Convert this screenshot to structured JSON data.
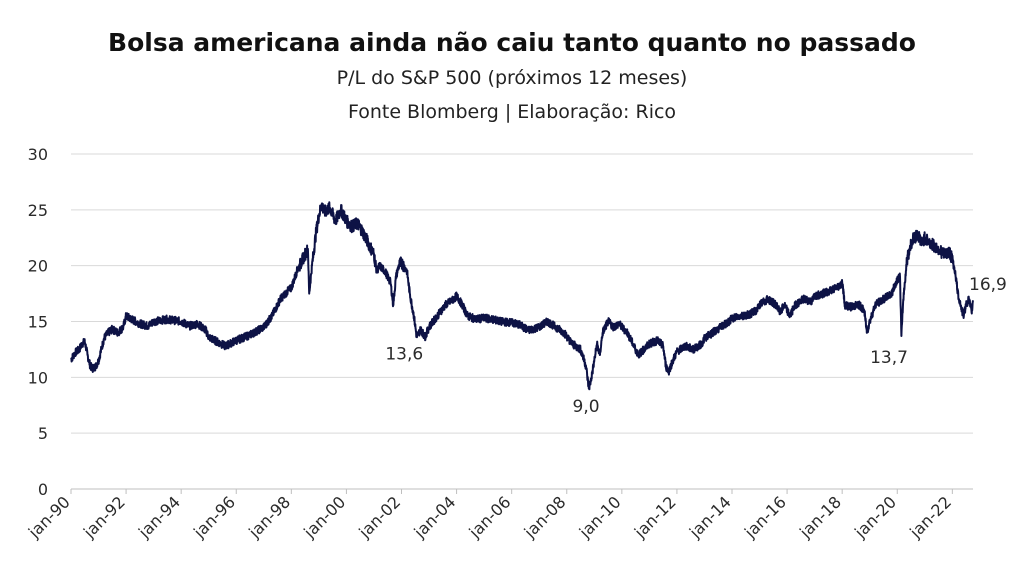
{
  "chart_data": {
    "type": "line",
    "title": "Bolsa americana ainda não caiu tanto quanto no passado",
    "subtitle": "P/L do S&P 500 (próximos 12 meses)",
    "source": "Fonte Blomberg | Elaboração: Rico",
    "xlabel": "",
    "ylabel": "",
    "xlim": [
      1990.0,
      2022.75
    ],
    "ylim": [
      0,
      30
    ],
    "yticks": [
      0,
      5,
      10,
      15,
      20,
      25,
      30
    ],
    "xticks": [
      {
        "label": "jan-90",
        "x": 1990
      },
      {
        "label": "jan-92",
        "x": 1992
      },
      {
        "label": "jan-94",
        "x": 1994
      },
      {
        "label": "jan-96",
        "x": 1996
      },
      {
        "label": "jan-98",
        "x": 1998
      },
      {
        "label": "jan-00",
        "x": 2000
      },
      {
        "label": "jan-02",
        "x": 2002
      },
      {
        "label": "jan-04",
        "x": 2004
      },
      {
        "label": "jan-06",
        "x": 2006
      },
      {
        "label": "jan-08",
        "x": 2008
      },
      {
        "label": "jan-10",
        "x": 2010
      },
      {
        "label": "jan-12",
        "x": 2012
      },
      {
        "label": "jan-14",
        "x": 2014
      },
      {
        "label": "jan-16",
        "x": 2016
      },
      {
        "label": "jan-18",
        "x": 2018
      },
      {
        "label": "jan-20",
        "x": 2020
      },
      {
        "label": "jan-22",
        "x": 2022
      }
    ],
    "grid": true,
    "series": [
      {
        "name": "P/L S&P 500",
        "color": "#0d1245",
        "points": [
          [
            1990.0,
            11.6
          ],
          [
            1990.15,
            12.2
          ],
          [
            1990.3,
            12.5
          ],
          [
            1990.4,
            13.0
          ],
          [
            1990.5,
            13.2
          ],
          [
            1990.6,
            12.0
          ],
          [
            1990.7,
            11.0
          ],
          [
            1990.8,
            10.8
          ],
          [
            1990.9,
            11.0
          ],
          [
            1991.0,
            11.5
          ],
          [
            1991.1,
            12.5
          ],
          [
            1991.2,
            13.5
          ],
          [
            1991.35,
            14.0
          ],
          [
            1991.5,
            14.3
          ],
          [
            1991.7,
            14.0
          ],
          [
            1991.9,
            14.5
          ],
          [
            1992.0,
            15.5
          ],
          [
            1992.2,
            15.2
          ],
          [
            1992.5,
            14.8
          ],
          [
            1992.8,
            14.6
          ],
          [
            1993.0,
            15.0
          ],
          [
            1993.5,
            15.2
          ],
          [
            1994.0,
            15.0
          ],
          [
            1994.3,
            14.6
          ],
          [
            1994.6,
            14.8
          ],
          [
            1994.9,
            14.2
          ],
          [
            1995.0,
            13.6
          ],
          [
            1995.3,
            13.2
          ],
          [
            1995.6,
            12.8
          ],
          [
            1996.0,
            13.3
          ],
          [
            1996.5,
            13.8
          ],
          [
            1997.0,
            14.5
          ],
          [
            1997.3,
            15.5
          ],
          [
            1997.6,
            17.0
          ],
          [
            1997.9,
            17.8
          ],
          [
            1998.0,
            18.0
          ],
          [
            1998.2,
            19.5
          ],
          [
            1998.4,
            20.5
          ],
          [
            1998.6,
            21.5
          ],
          [
            1998.65,
            17.5
          ],
          [
            1998.75,
            20.0
          ],
          [
            1998.9,
            23.0
          ],
          [
            1999.0,
            24.5
          ],
          [
            1999.1,
            25.5
          ],
          [
            1999.2,
            24.8
          ],
          [
            1999.4,
            25.2
          ],
          [
            1999.6,
            24.0
          ],
          [
            1999.8,
            25.0
          ],
          [
            2000.0,
            24.0
          ],
          [
            2000.2,
            23.5
          ],
          [
            2000.4,
            23.8
          ],
          [
            2000.6,
            23.0
          ],
          [
            2000.8,
            22.0
          ],
          [
            2001.0,
            21.0
          ],
          [
            2001.1,
            19.5
          ],
          [
            2001.2,
            20.0
          ],
          [
            2001.4,
            19.5
          ],
          [
            2001.6,
            18.5
          ],
          [
            2001.7,
            16.5
          ],
          [
            2001.8,
            19.0
          ],
          [
            2001.9,
            20.0
          ],
          [
            2002.0,
            20.3
          ],
          [
            2002.2,
            19.5
          ],
          [
            2002.3,
            17.5
          ],
          [
            2002.45,
            15.5
          ],
          [
            2002.55,
            13.6
          ],
          [
            2002.7,
            14.3
          ],
          [
            2002.85,
            13.6
          ],
          [
            2003.0,
            14.5
          ],
          [
            2003.3,
            15.5
          ],
          [
            2003.6,
            16.5
          ],
          [
            2003.9,
            17.0
          ],
          [
            2004.0,
            17.3
          ],
          [
            2004.2,
            16.5
          ],
          [
            2004.4,
            15.5
          ],
          [
            2004.7,
            15.2
          ],
          [
            2005.0,
            15.3
          ],
          [
            2005.3,
            15.2
          ],
          [
            2005.6,
            15.0
          ],
          [
            2006.0,
            14.9
          ],
          [
            2006.3,
            14.7
          ],
          [
            2006.6,
            14.2
          ],
          [
            2007.0,
            14.5
          ],
          [
            2007.3,
            15.0
          ],
          [
            2007.6,
            14.5
          ],
          [
            2007.9,
            14.0
          ],
          [
            2008.2,
            13.0
          ],
          [
            2008.5,
            12.5
          ],
          [
            2008.7,
            11.0
          ],
          [
            2008.8,
            9.0
          ],
          [
            2008.9,
            10.0
          ],
          [
            2009.0,
            11.5
          ],
          [
            2009.1,
            13.0
          ],
          [
            2009.2,
            12.0
          ],
          [
            2009.3,
            14.0
          ],
          [
            2009.5,
            15.0
          ],
          [
            2009.7,
            14.5
          ],
          [
            2009.9,
            14.8
          ],
          [
            2010.0,
            14.5
          ],
          [
            2010.2,
            14.0
          ],
          [
            2010.4,
            13.0
          ],
          [
            2010.6,
            12.0
          ],
          [
            2010.8,
            12.5
          ],
          [
            2011.0,
            13.0
          ],
          [
            2011.3,
            13.3
          ],
          [
            2011.5,
            12.8
          ],
          [
            2011.6,
            11.0
          ],
          [
            2011.7,
            10.5
          ],
          [
            2011.85,
            11.5
          ],
          [
            2012.0,
            12.3
          ],
          [
            2012.3,
            12.8
          ],
          [
            2012.6,
            12.5
          ],
          [
            2012.9,
            13.0
          ],
          [
            2013.0,
            13.5
          ],
          [
            2013.3,
            14.0
          ],
          [
            2013.6,
            14.5
          ],
          [
            2013.9,
            15.0
          ],
          [
            2014.0,
            15.3
          ],
          [
            2014.3,
            15.5
          ],
          [
            2014.6,
            15.6
          ],
          [
            2014.9,
            16.0
          ],
          [
            2015.0,
            16.5
          ],
          [
            2015.3,
            17.0
          ],
          [
            2015.6,
            16.5
          ],
          [
            2015.75,
            15.8
          ],
          [
            2015.9,
            16.5
          ],
          [
            2016.0,
            16.0
          ],
          [
            2016.1,
            15.5
          ],
          [
            2016.3,
            16.5
          ],
          [
            2016.6,
            17.0
          ],
          [
            2016.9,
            16.8
          ],
          [
            2017.0,
            17.3
          ],
          [
            2017.3,
            17.5
          ],
          [
            2017.6,
            17.8
          ],
          [
            2017.9,
            18.2
          ],
          [
            2018.0,
            18.5
          ],
          [
            2018.1,
            16.5
          ],
          [
            2018.3,
            16.3
          ],
          [
            2018.6,
            16.5
          ],
          [
            2018.8,
            16.0
          ],
          [
            2018.9,
            14.0
          ],
          [
            2019.0,
            15.0
          ],
          [
            2019.2,
            16.5
          ],
          [
            2019.5,
            17.0
          ],
          [
            2019.8,
            17.5
          ],
          [
            2020.0,
            18.8
          ],
          [
            2020.1,
            19.0
          ],
          [
            2020.15,
            13.7
          ],
          [
            2020.22,
            17.0
          ],
          [
            2020.35,
            20.5
          ],
          [
            2020.5,
            22.0
          ],
          [
            2020.6,
            22.5
          ],
          [
            2020.75,
            22.8
          ],
          [
            2020.9,
            22.0
          ],
          [
            2021.0,
            22.5
          ],
          [
            2021.2,
            22.0
          ],
          [
            2021.5,
            21.5
          ],
          [
            2021.7,
            21.0
          ],
          [
            2021.9,
            21.2
          ],
          [
            2022.0,
            20.5
          ],
          [
            2022.1,
            19.5
          ],
          [
            2022.2,
            17.5
          ],
          [
            2022.3,
            16.5
          ],
          [
            2022.4,
            15.5
          ],
          [
            2022.5,
            16.5
          ],
          [
            2022.6,
            17.0
          ],
          [
            2022.7,
            15.8
          ],
          [
            2022.75,
            16.9
          ]
        ]
      }
    ],
    "annotations": [
      {
        "label": "13,6",
        "x": 2002.1,
        "y": 11.6
      },
      {
        "label": "9,0",
        "x": 2008.7,
        "y": 6.9
      },
      {
        "label": "13,7",
        "x": 2019.7,
        "y": 11.3
      },
      {
        "label": "16,9",
        "x": 2023.5,
        "y": 17.8
      }
    ]
  }
}
